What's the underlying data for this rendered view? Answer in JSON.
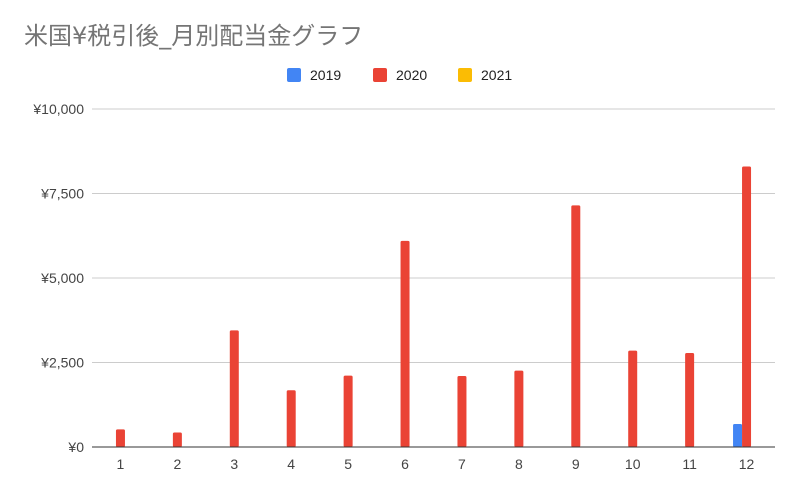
{
  "chart_data": {
    "type": "bar",
    "title": "米国¥税引後_月別配当金グラフ",
    "xlabel": "",
    "ylabel": "",
    "categories": [
      "1",
      "2",
      "3",
      "4",
      "5",
      "6",
      "7",
      "8",
      "9",
      "10",
      "11",
      "12"
    ],
    "series": [
      {
        "name": "2019",
        "color": "#4285f4",
        "values": [
          0,
          0,
          0,
          0,
          0,
          0,
          0,
          0,
          0,
          0,
          0,
          680
        ]
      },
      {
        "name": "2020",
        "color": "#ea4335",
        "values": [
          520,
          430,
          3450,
          1680,
          2110,
          6100,
          2100,
          2260,
          7150,
          2850,
          2780,
          8300
        ]
      },
      {
        "name": "2021",
        "color": "#fbbc04",
        "values": [
          0,
          0,
          0,
          0,
          0,
          0,
          0,
          0,
          0,
          0,
          0,
          0
        ]
      }
    ],
    "ylim": [
      0,
      10000
    ],
    "yticks": [
      0,
      2500,
      5000,
      7500,
      10000
    ],
    "ytick_labels": [
      "¥0",
      "¥2,500",
      "¥5,000",
      "¥7,500",
      "¥10,000"
    ],
    "grid": true,
    "legend_position": "top"
  }
}
